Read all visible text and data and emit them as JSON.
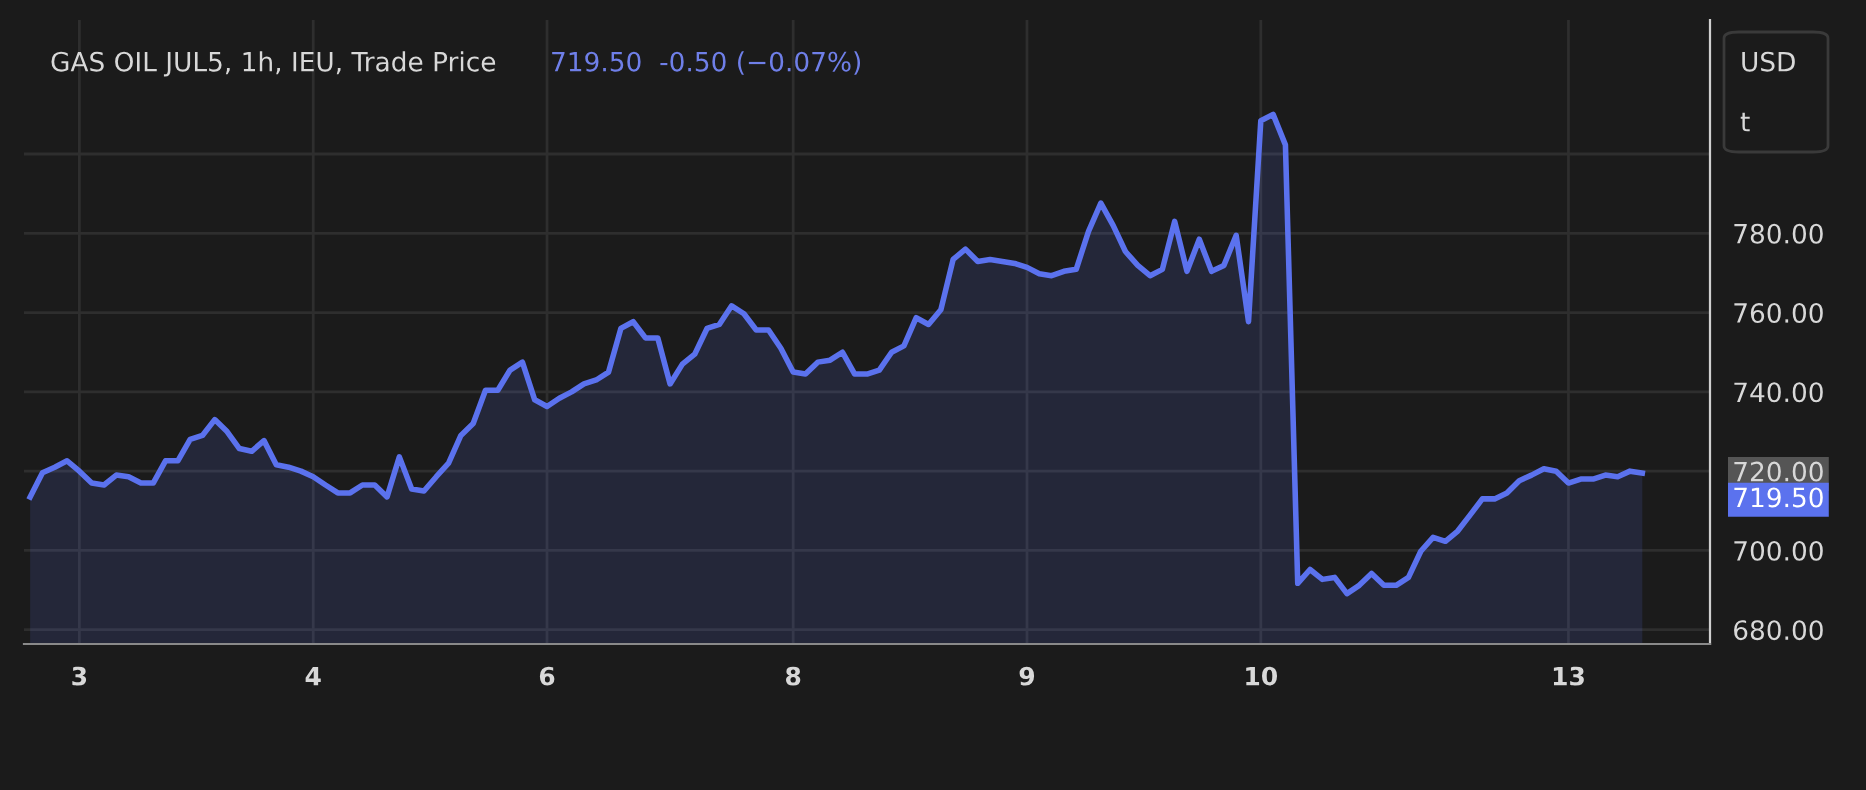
{
  "chart_data": {
    "type": "area",
    "title": "GAS OIL JUL5, 1h, IEU, Trade Price",
    "subtitle": "719.50  -0.50 (−0.07%)",
    "annotations": [
      "USD",
      "t",
      "719.50"
    ],
    "categories": [
      null,
      null,
      null,
      null,
      "3",
      null,
      null,
      null,
      null,
      null,
      null,
      null,
      null,
      null,
      null,
      null,
      null,
      null,
      null,
      null,
      null,
      null,
      null,
      "4",
      null,
      null,
      null,
      null,
      null,
      null,
      null,
      null,
      null,
      null,
      null,
      null,
      null,
      null,
      null,
      null,
      null,
      null,
      "6",
      null,
      null,
      null,
      null,
      null,
      null,
      null,
      null,
      null,
      null,
      null,
      null,
      null,
      null,
      null,
      null,
      null,
      null,
      null,
      "8",
      null,
      null,
      null,
      null,
      null,
      null,
      null,
      null,
      null,
      null,
      null,
      null,
      null,
      null,
      null,
      null,
      null,
      null,
      "9",
      null,
      null,
      null,
      null,
      null,
      null,
      null,
      null,
      null,
      null,
      null,
      null,
      null,
      null,
      null,
      null,
      null,
      null,
      "10",
      null,
      null,
      null,
      null,
      null,
      null,
      null,
      null,
      null,
      null,
      null,
      null,
      null,
      null,
      null,
      null,
      null,
      null,
      null,
      null,
      null,
      null,
      null,
      null,
      "13",
      null,
      null,
      null,
      null,
      null,
      null
    ],
    "series": [
      {
        "color": "#5b72ee",
        "values": [
          713.5,
          719.6,
          721,
          722.6,
          720,
          717,
          716.5,
          719,
          718.6,
          717,
          717,
          722.6,
          722.6,
          728,
          729,
          733,
          730,
          725.7,
          725,
          727.7,
          721.6,
          721,
          720,
          718.6,
          716.5,
          714.5,
          714.5,
          716.5,
          716.5,
          713.5,
          723.6,
          715.5,
          715,
          718.6,
          722,
          729,
          732,
          740.4,
          740.4,
          745.5,
          747.5,
          738,
          736.3,
          738.4,
          740,
          742,
          743,
          745,
          756,
          757.7,
          753.6,
          753.6,
          742,
          747,
          749.5,
          756,
          757,
          761.7,
          759.7,
          755.6,
          755.6,
          751,
          745,
          744.5,
          747.5,
          748,
          750,
          744.5,
          744.5,
          745.5,
          750,
          751.6,
          758.7,
          757,
          760.7,
          773.4,
          776,
          772.9,
          773.4,
          772.9,
          772.4,
          771.4,
          769.8,
          769.3,
          770.4,
          770.9,
          780.5,
          787.6,
          782,
          775.4,
          771.9,
          769.3,
          770.9,
          783,
          770.4,
          778.5,
          770.4,
          771.9,
          779.5,
          757.7,
          808.4,
          810,
          802.3,
          691.7,
          695.2,
          692.7,
          693.2,
          689.1,
          691.2,
          694.2,
          691.2,
          691.2,
          693.2,
          699.8,
          703.3,
          702.3,
          704.9,
          708.9,
          713,
          713,
          714.5,
          717.6,
          719,
          720.6,
          720,
          717,
          718,
          718,
          719,
          718.6,
          720,
          719.5
        ]
      }
    ],
    "ylim": [
      676.4,
      833.8
    ],
    "yticks": [
      {
        "value": 680,
        "label": "680.00"
      },
      {
        "value": 700,
        "label": "700.00"
      },
      {
        "value": 720,
        "label": "720.00"
      },
      {
        "value": 740,
        "label": "740.00"
      },
      {
        "value": 760,
        "label": "760.00"
      },
      {
        "value": 780,
        "label": "780.00"
      },
      {
        "value": 800,
        "label": null
      }
    ],
    "grid": true
  }
}
